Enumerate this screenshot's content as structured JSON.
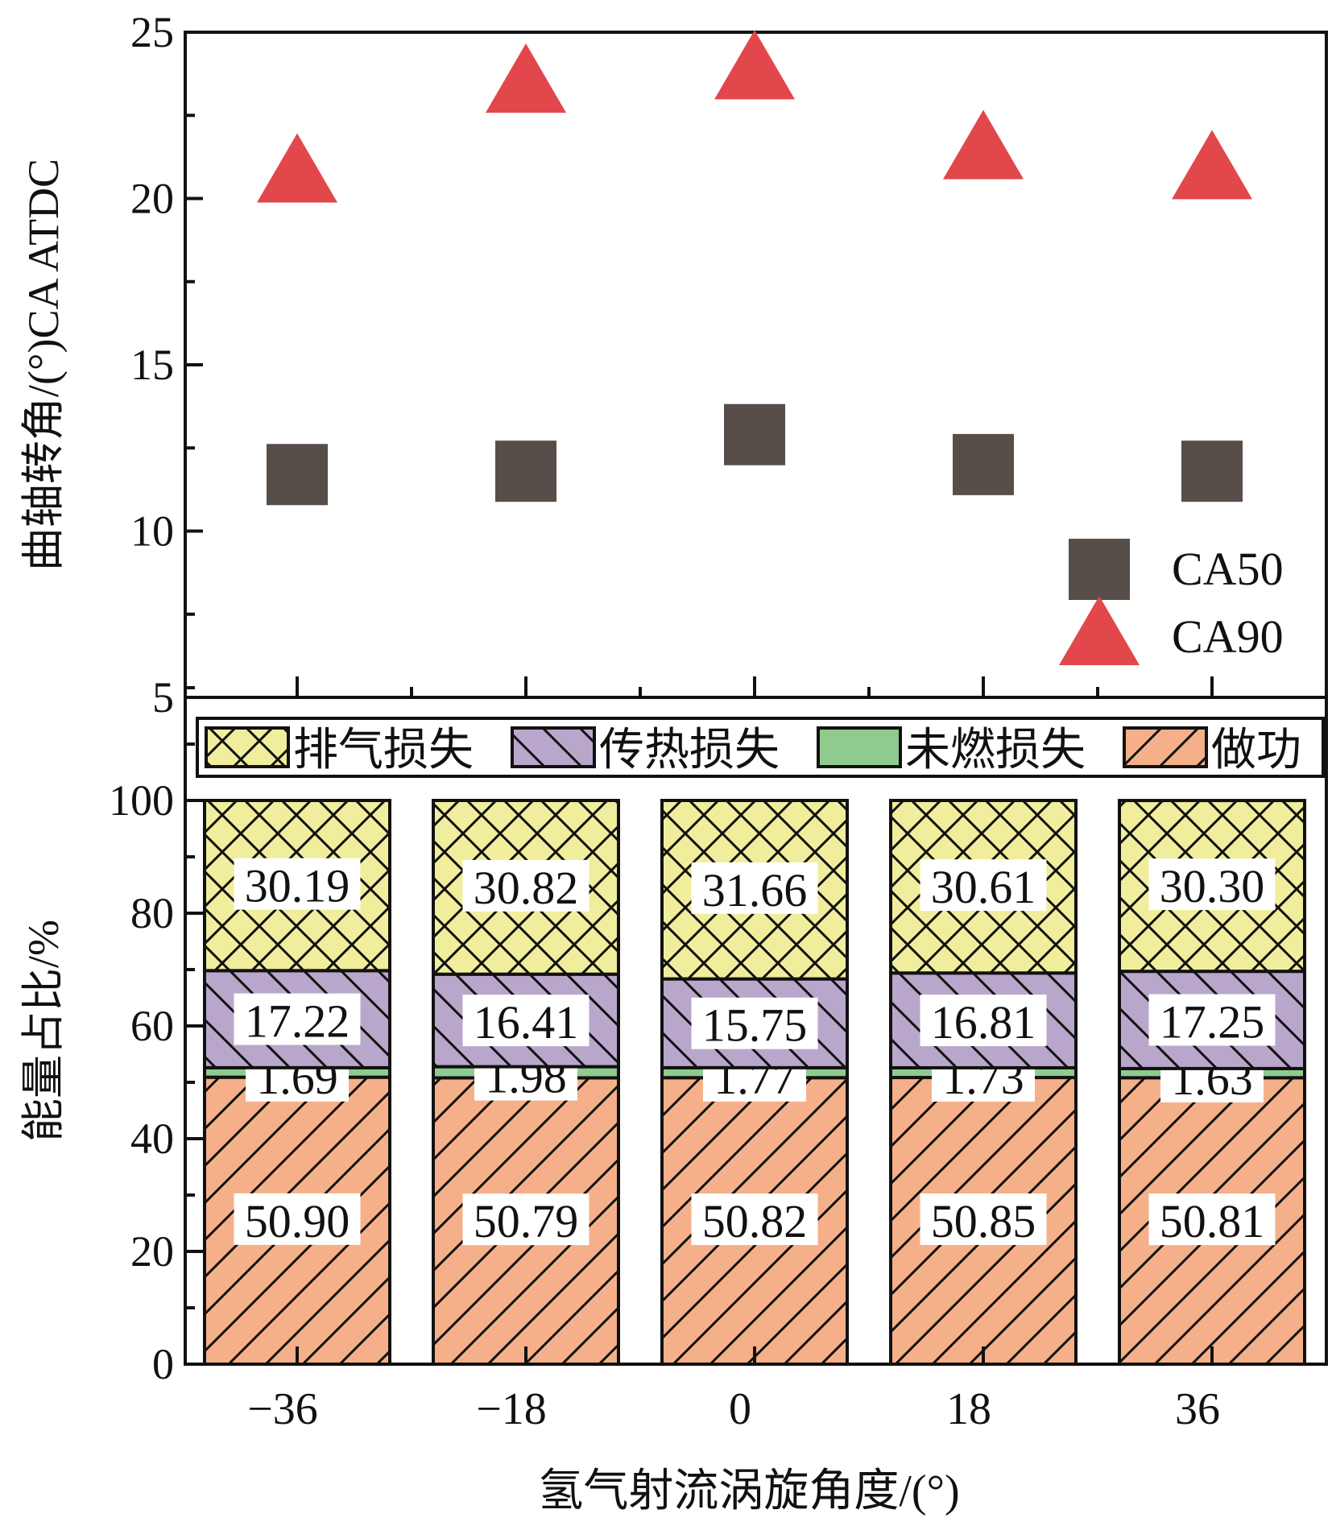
{
  "chart_data": [
    {
      "type": "scatter",
      "title": "",
      "ylabel": "曲轴转角/(°)CA ATDC",
      "ylim": [
        5,
        25
      ],
      "yticks": [
        "5",
        "10",
        "15",
        "20",
        "25"
      ],
      "x": [
        -36,
        -18,
        0,
        18,
        36
      ],
      "series": [
        {
          "name": "CA50",
          "marker": "square",
          "color": "#574d49",
          "values": [
            11.7,
            11.8,
            12.9,
            12.0,
            11.8
          ]
        },
        {
          "name": "CA90",
          "marker": "triangle",
          "color": "#e2474b",
          "values": [
            20.8,
            23.5,
            23.9,
            21.5,
            20.9
          ]
        }
      ],
      "legend_position": "bottom-right"
    },
    {
      "type": "bar",
      "stacked": true,
      "ylabel": "能量占比/%",
      "xlabel": "氢气射流涡旋角度/(°)",
      "ylim": [
        0,
        100
      ],
      "yticks": [
        "0",
        "20",
        "40",
        "60",
        "80",
        "100"
      ],
      "categories": [
        "−36",
        "−18",
        "0",
        "18",
        "36"
      ],
      "series": [
        {
          "name": "做功",
          "color": "#f5b08a",
          "hatch": "forward",
          "values": [
            "50.90",
            "50.79",
            "50.82",
            "50.85",
            "50.81"
          ]
        },
        {
          "name": "未燃损失",
          "color": "#8fcb8f",
          "hatch": "none",
          "values": [
            "1.69",
            "1.98",
            "1.77",
            "1.73",
            "1.63"
          ]
        },
        {
          "name": "传热损失",
          "color": "#b9a7cb",
          "hatch": "back",
          "values": [
            "17.22",
            "16.41",
            "15.75",
            "16.81",
            "17.25"
          ]
        },
        {
          "name": "排气损失",
          "color": "#f0ee9c",
          "hatch": "cross",
          "values": [
            "30.19",
            "30.82",
            "31.66",
            "30.61",
            "30.30"
          ]
        }
      ],
      "legend_order": [
        "排气损失",
        "传热损失",
        "未燃损失",
        "做功"
      ],
      "legend_position": "top"
    }
  ]
}
